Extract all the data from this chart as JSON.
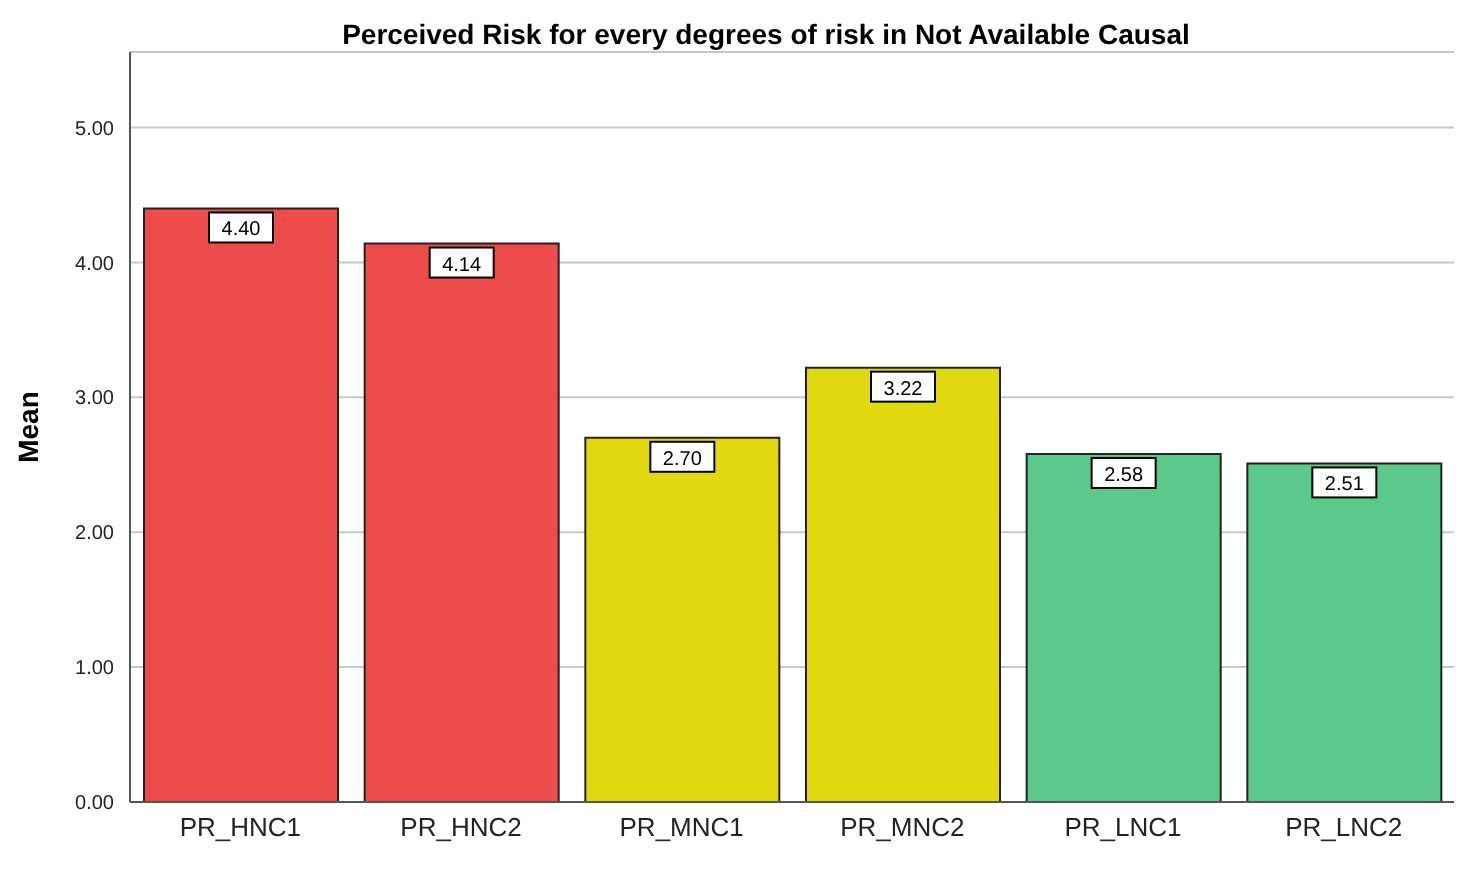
{
  "chart_data": {
    "type": "bar",
    "title": "Perceived Risk for every degrees of risk in Not Available Causal",
    "ylabel": "Mean",
    "categories": [
      "PR_HNC1",
      "PR_HNC2",
      "PR_MNC1",
      "PR_MNC2",
      "PR_LNC1",
      "PR_LNC2"
    ],
    "values": [
      4.4,
      4.14,
      2.7,
      3.22,
      2.58,
      2.51
    ],
    "colors": [
      "#ee4b4b",
      "#ee4b4b",
      "#e2d80f",
      "#e2d80f",
      "#5ac98a",
      "#5ac98a"
    ],
    "value_labels": [
      "4.40",
      "4.14",
      "2.70",
      "3.22",
      "2.58",
      "2.51"
    ],
    "ylim": [
      0,
      5.56
    ],
    "yticks": [
      {
        "value": 0,
        "label": "0.00"
      },
      {
        "value": 1,
        "label": "1.00"
      },
      {
        "value": 2,
        "label": "2.00"
      },
      {
        "value": 3,
        "label": "3.00"
      },
      {
        "value": 4,
        "label": "4.00"
      },
      {
        "value": 5,
        "label": "5.00"
      }
    ],
    "grid": "y",
    "legend": false
  }
}
